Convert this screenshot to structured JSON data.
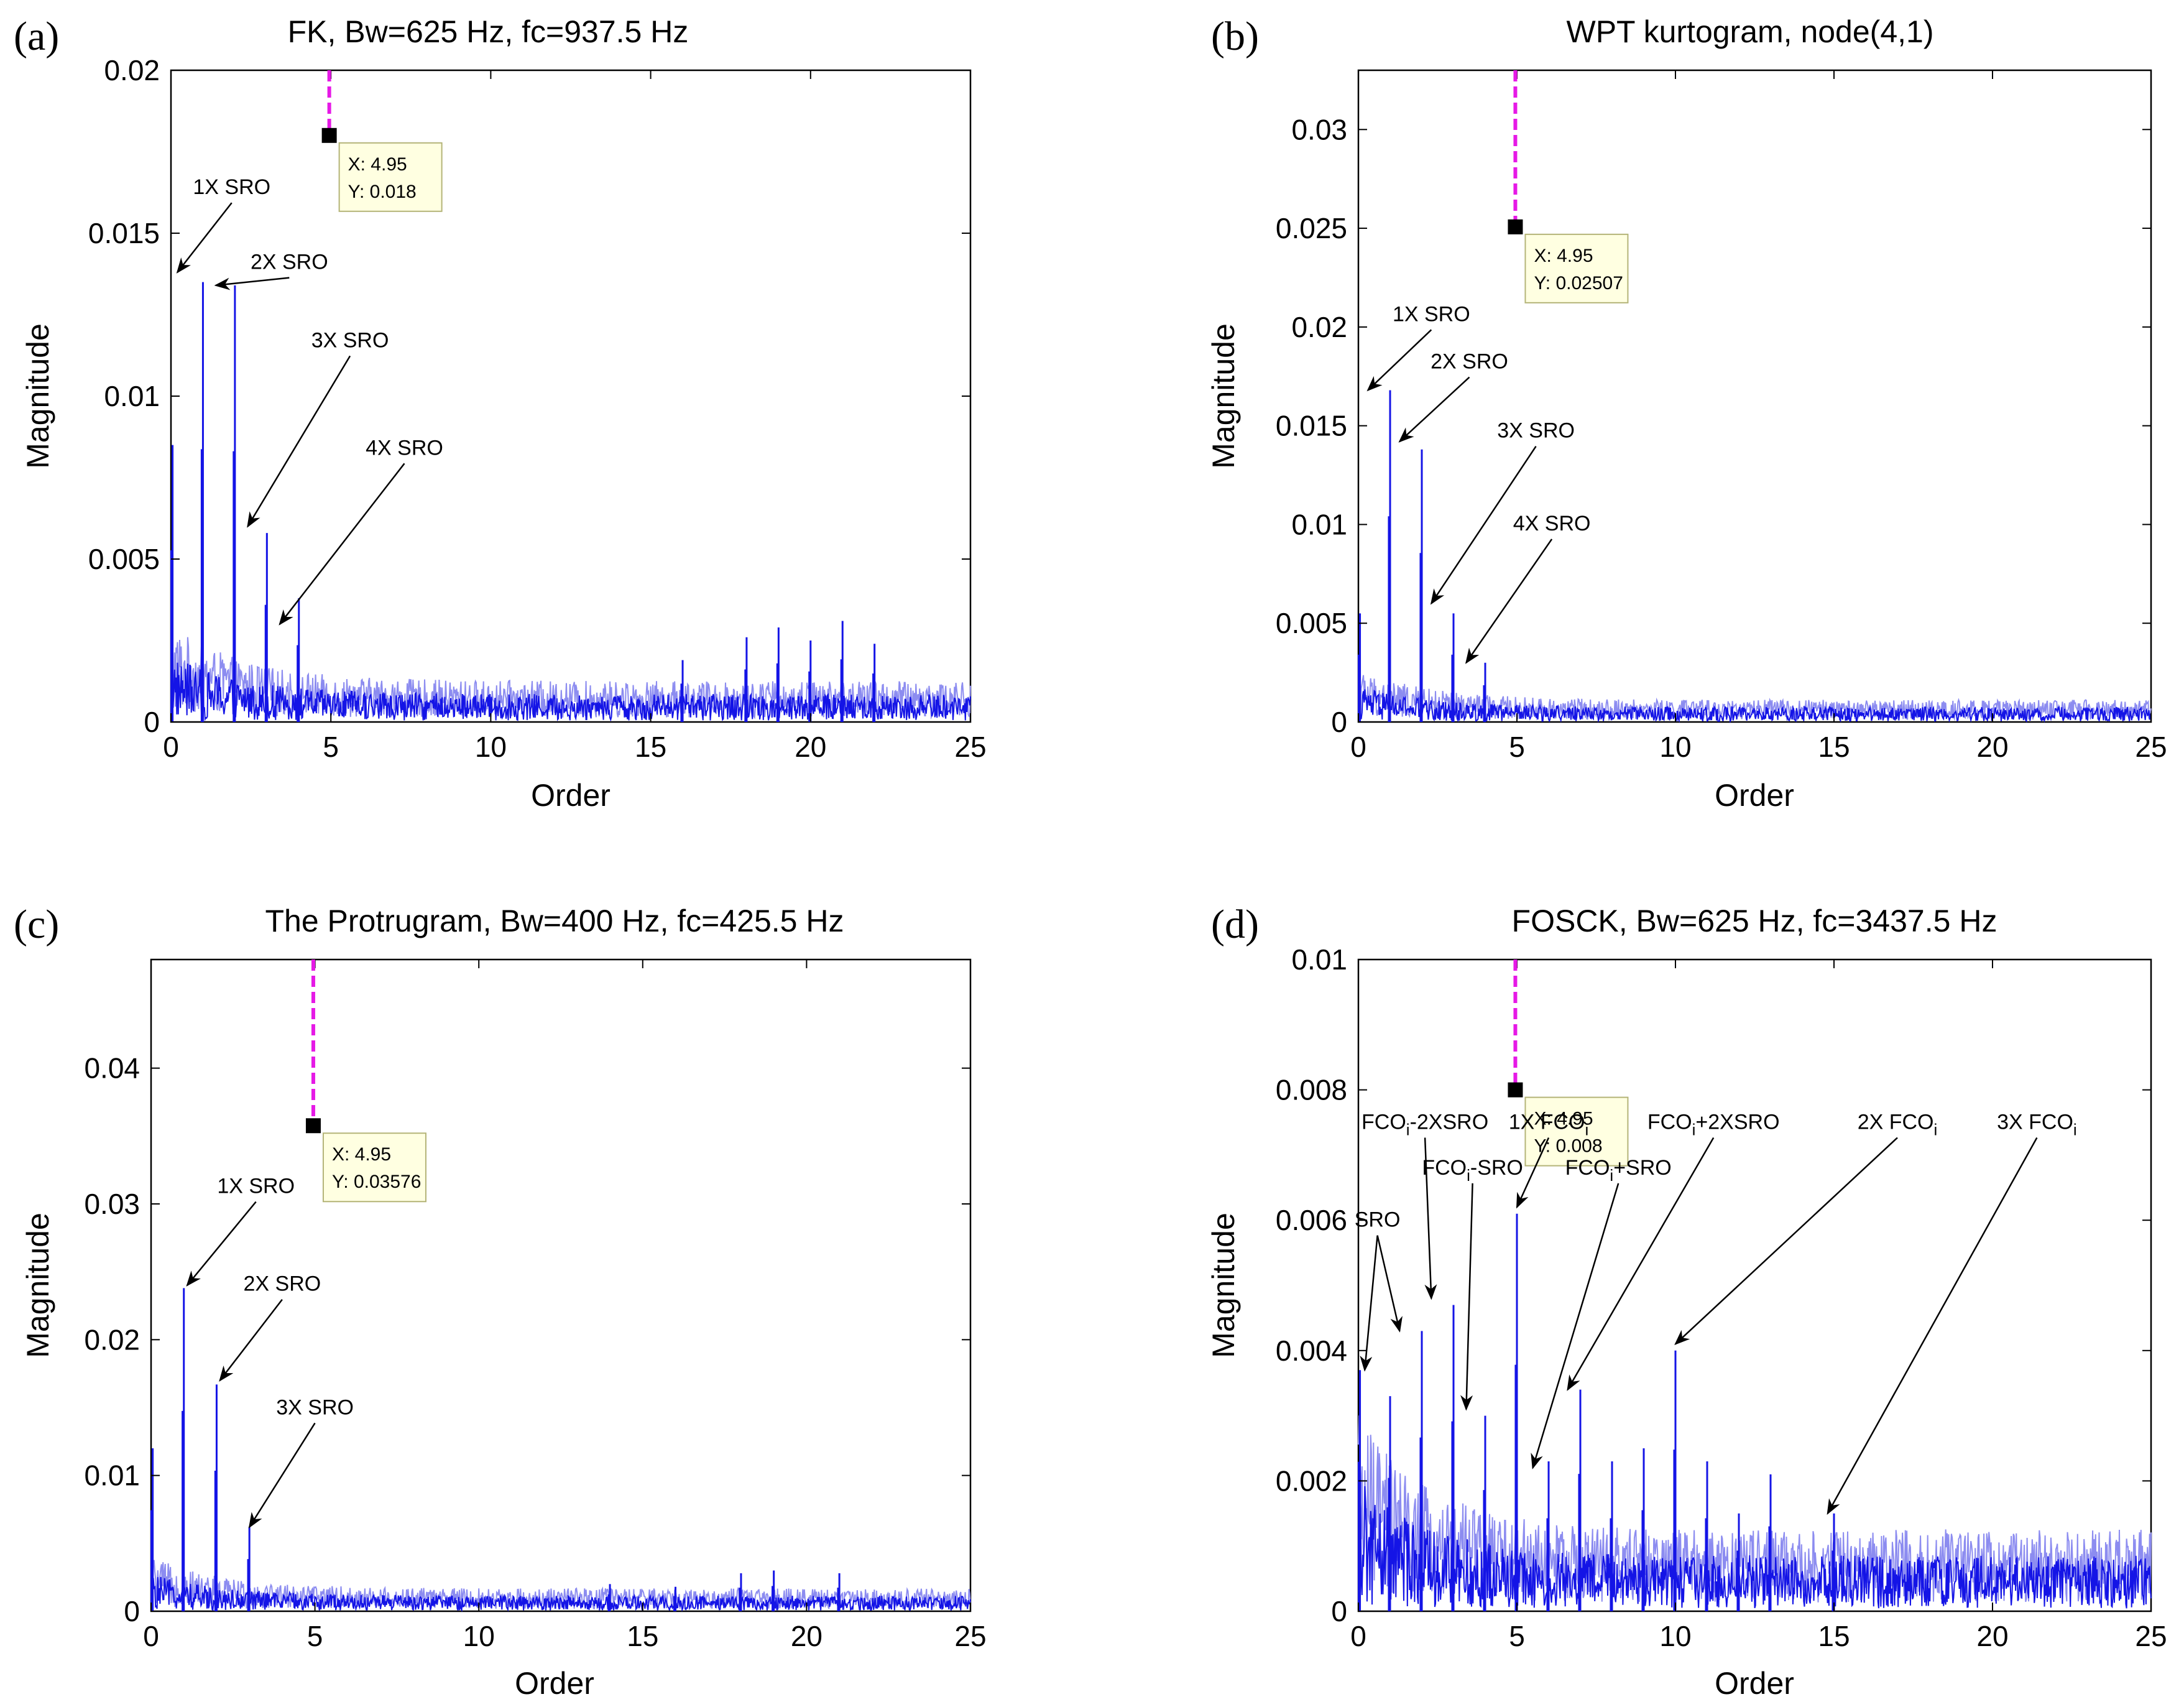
{
  "figure": {
    "colors": {
      "signal": "#1414e6",
      "signal_light": "#8c8cf0",
      "marker": "#e619e6",
      "datatip_bg": "#ffffe1",
      "datatip_border": "#b4b478"
    },
    "x_axis_label": "Order",
    "y_axis_label": "Magnitude"
  },
  "chart_data": [
    {
      "panel": "(a)",
      "type": "line",
      "title": "FK, Bw=625 Hz, fc=937.5 Hz",
      "xlabel": "Order",
      "ylabel": "Magnitude",
      "xlim": [
        0,
        25
      ],
      "ylim": [
        0,
        0.02
      ],
      "xticks": [
        0,
        5,
        10,
        15,
        20,
        25
      ],
      "yticks": [
        0,
        0.005,
        0.01,
        0.015,
        0.02
      ],
      "ytick_labels": [
        "0",
        "0.005",
        "0.01",
        "0.015",
        "0.02"
      ],
      "noise_level": 0.0009,
      "peaks": [
        [
          0.05,
          0.0085
        ],
        [
          1.0,
          0.0135
        ],
        [
          2.0,
          0.0134
        ],
        [
          3.0,
          0.0058
        ],
        [
          4.0,
          0.0038
        ],
        [
          16.0,
          0.0019
        ],
        [
          18.0,
          0.0026
        ],
        [
          19.0,
          0.0029
        ],
        [
          20.0,
          0.0025
        ],
        [
          21.0,
          0.0031
        ],
        [
          22.0,
          0.0024
        ]
      ],
      "datatip": {
        "x": 4.95,
        "y": 0.018,
        "x_label": "X: 4.95",
        "y_label": "Y: 0.018"
      },
      "annotations": [
        {
          "text": "1X SRO",
          "x": 1.9,
          "y": 0.0162,
          "tx": 0.2,
          "ty": 0.0138
        },
        {
          "text": "2X SRO",
          "x": 3.7,
          "y": 0.0139,
          "tx": 1.4,
          "ty": 0.0134
        },
        {
          "text": "3X SRO",
          "x": 5.6,
          "y": 0.0115,
          "tx": 2.4,
          "ty": 0.006
        },
        {
          "text": "4X SRO",
          "x": 7.3,
          "y": 0.0082,
          "tx": 3.4,
          "ty": 0.003
        }
      ]
    },
    {
      "panel": "(b)",
      "type": "line",
      "title": "WPT kurtogram, node(4,1)",
      "xlabel": "Order",
      "ylabel": "Magnitude",
      "xlim": [
        0,
        25
      ],
      "ylim": [
        0,
        0.033
      ],
      "xticks": [
        0,
        5,
        10,
        15,
        20,
        25
      ],
      "yticks": [
        0,
        0.005,
        0.01,
        0.015,
        0.02,
        0.025,
        0.03
      ],
      "ytick_labels": [
        "0",
        "0.005",
        "0.01",
        "0.015",
        "0.02",
        "0.025",
        "0.03"
      ],
      "noise_level": 0.0008,
      "peaks": [
        [
          0.05,
          0.0055
        ],
        [
          1.0,
          0.0168
        ],
        [
          2.0,
          0.0138
        ],
        [
          3.0,
          0.0055
        ],
        [
          4.0,
          0.003
        ]
      ],
      "datatip": {
        "x": 4.95,
        "y": 0.02507,
        "x_label": "X: 4.95",
        "y_label": "Y: 0.02507"
      },
      "annotations": [
        {
          "text": "1X SRO",
          "x": 2.3,
          "y": 0.0203,
          "tx": 0.3,
          "ty": 0.0168
        },
        {
          "text": "2X SRO",
          "x": 3.5,
          "y": 0.0179,
          "tx": 1.3,
          "ty": 0.0142
        },
        {
          "text": "3X SRO",
          "x": 5.6,
          "y": 0.0144,
          "tx": 2.3,
          "ty": 0.006
        },
        {
          "text": "4X SRO",
          "x": 6.1,
          "y": 0.0097,
          "tx": 3.4,
          "ty": 0.003
        }
      ]
    },
    {
      "panel": "(c)",
      "type": "line",
      "title": "The Protrugram, Bw=400 Hz, fc=425.5 Hz",
      "xlabel": "Order",
      "ylabel": "Magnitude",
      "xlim": [
        0,
        25
      ],
      "ylim": [
        0,
        0.048
      ],
      "xticks": [
        0,
        5,
        10,
        15,
        20,
        25
      ],
      "yticks": [
        0,
        0.01,
        0.02,
        0.03,
        0.04
      ],
      "ytick_labels": [
        "0",
        "0.01",
        "0.02",
        "0.03",
        "0.04"
      ],
      "noise_level": 0.0012,
      "peaks": [
        [
          0.05,
          0.012
        ],
        [
          1.0,
          0.0238
        ],
        [
          2.0,
          0.0167
        ],
        [
          3.0,
          0.0062
        ],
        [
          14.0,
          0.002
        ],
        [
          16.0,
          0.0018
        ],
        [
          18.0,
          0.0028
        ],
        [
          19.0,
          0.003
        ],
        [
          21.0,
          0.0028
        ]
      ],
      "datatip": {
        "x": 4.95,
        "y": 0.03576,
        "x_label": "X: 4.95",
        "y_label": "Y: 0.03576"
      },
      "annotations": [
        {
          "text": "1X SRO",
          "x": 3.2,
          "y": 0.0308,
          "tx": 1.1,
          "ty": 0.024
        },
        {
          "text": "2X SRO",
          "x": 4.0,
          "y": 0.0236,
          "tx": 2.1,
          "ty": 0.017
        },
        {
          "text": "3X SRO",
          "x": 5.0,
          "y": 0.0145,
          "tx": 3.0,
          "ty": 0.0062
        }
      ]
    },
    {
      "panel": "(d)",
      "type": "line",
      "title": "FOSCK, Bw=625 Hz, fc=3437.5 Hz",
      "xlabel": "Order",
      "ylabel": "Magnitude",
      "xlim": [
        0,
        25
      ],
      "ylim": [
        0,
        0.01
      ],
      "xticks": [
        0,
        5,
        10,
        15,
        20,
        25
      ],
      "yticks": [
        0,
        0.002,
        0.004,
        0.006,
        0.008,
        0.01
      ],
      "ytick_labels": [
        "0",
        "0.002",
        "0.004",
        "0.006",
        "0.008",
        "0.01"
      ],
      "noise_level": 0.0009,
      "peaks": [
        [
          0.05,
          0.0037
        ],
        [
          1.0,
          0.0033
        ],
        [
          2.0,
          0.0043
        ],
        [
          3.0,
          0.0047
        ],
        [
          4.0,
          0.003
        ],
        [
          5.0,
          0.0061
        ],
        [
          6.0,
          0.0023
        ],
        [
          7.0,
          0.0034
        ],
        [
          8.0,
          0.0023
        ],
        [
          9.0,
          0.0025
        ],
        [
          10.0,
          0.004
        ],
        [
          11.0,
          0.0023
        ],
        [
          12.0,
          0.0015
        ],
        [
          13.0,
          0.0021
        ],
        [
          15.0,
          0.0015
        ]
      ],
      "datatip": {
        "x": 4.95,
        "y": 0.008,
        "x_label": "X: 4.95",
        "y_label": "Y: 0.008"
      },
      "annotations": [
        {
          "text": "SRO",
          "sub": "",
          "tail": "",
          "x": 0.6,
          "y": 0.0059,
          "tx": 0.2,
          "ty": 0.0037
        },
        {
          "text": "",
          "sub": "",
          "tail": "",
          "x": 0.6,
          "y": 0.0059,
          "tx": 1.3,
          "ty": 0.0043
        },
        {
          "text": "FCO",
          "sub": "i",
          "tail": "-2XSRO",
          "x": 2.1,
          "y": 0.0074,
          "tx": 2.3,
          "ty": 0.0048
        },
        {
          "text": "FCO",
          "sub": "i",
          "tail": "-SRO",
          "x": 3.6,
          "y": 0.0067,
          "tx": 3.4,
          "ty": 0.0031
        },
        {
          "text": "1X FCO",
          "sub": "i",
          "tail": "",
          "x": 6.0,
          "y": 0.0074,
          "tx": 5.0,
          "ty": 0.0062
        },
        {
          "text": "FCO",
          "sub": "i",
          "tail": "+SRO",
          "x": 8.2,
          "y": 0.0067,
          "tx": 5.5,
          "ty": 0.0022
        },
        {
          "text": "FCO",
          "sub": "i",
          "tail": "+2XSRO",
          "x": 11.2,
          "y": 0.0074,
          "tx": 6.6,
          "ty": 0.0034
        },
        {
          "text": "2X FCO",
          "sub": "i",
          "tail": "",
          "x": 17.0,
          "y": 0.0074,
          "tx": 10.0,
          "ty": 0.0041
        },
        {
          "text": "3X FCO",
          "sub": "i",
          "tail": "",
          "x": 21.4,
          "y": 0.0074,
          "tx": 14.8,
          "ty": 0.0015
        }
      ]
    }
  ]
}
